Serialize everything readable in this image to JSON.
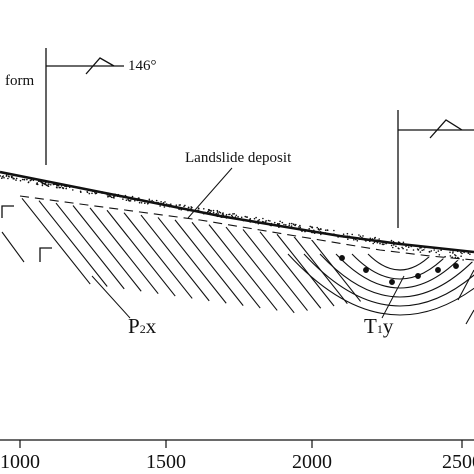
{
  "labels": {
    "platform_partial": "form",
    "azimuth": "146°",
    "landslide_deposit": "Landslide deposit",
    "formation_p": "P",
    "formation_p_sub": "2",
    "formation_p_suffix": "x",
    "formation_t": "T",
    "formation_t_sub": "1",
    "formation_t_suffix": "y"
  },
  "x_axis": {
    "tick_labels": [
      "1000",
      "1500",
      "2000",
      "2500"
    ]
  },
  "colors": {
    "ink": "#111111",
    "background": "#ffffff"
  }
}
